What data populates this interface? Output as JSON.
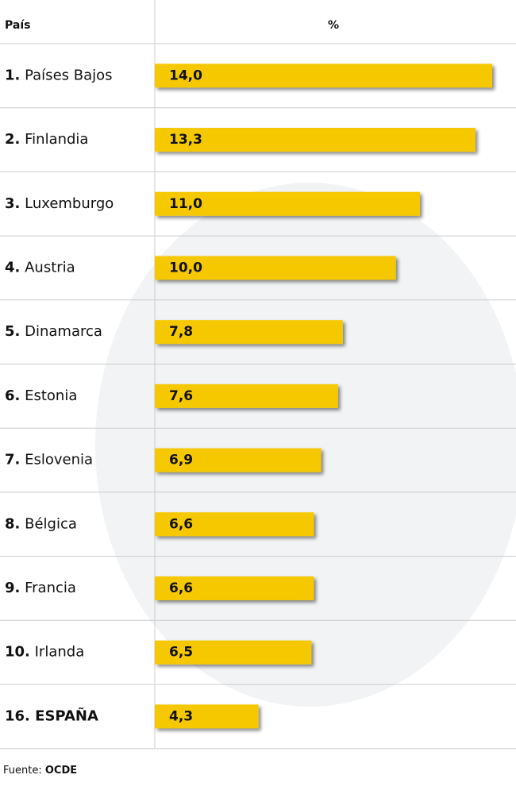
{
  "chart_data": {
    "type": "bar",
    "header": {
      "left": "País",
      "right": "%"
    },
    "ranks": [
      "1.",
      "2.",
      "3.",
      "4.",
      "5.",
      "6.",
      "7.",
      "8.",
      "9.",
      "10.",
      "16."
    ],
    "categories": [
      "Países Bajos",
      "Finlandia",
      "Luxemburgo",
      "Austria",
      "Dinamarca",
      "Estonia",
      "Eslovenia",
      "Bélgica",
      "Francia",
      "Irlanda",
      "ESPAÑA"
    ],
    "values": [
      14.0,
      13.3,
      11.0,
      10.0,
      7.8,
      7.6,
      6.9,
      6.6,
      6.6,
      6.5,
      4.3
    ],
    "value_labels": [
      "14,0",
      "13,3",
      "11,0",
      "10,0",
      "7,8",
      "7,6",
      "6,9",
      "6,6",
      "6,6",
      "6,5",
      "4,3"
    ],
    "color": "#f5c800",
    "xlim": [
      0,
      14
    ],
    "source": {
      "label": "Fuente:",
      "name": "OCDE"
    }
  }
}
